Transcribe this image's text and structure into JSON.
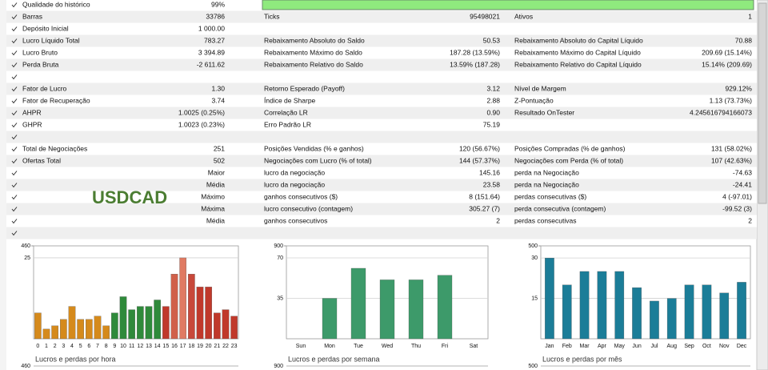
{
  "quality": {
    "label": "Qualidade do histórico",
    "value": "99%"
  },
  "table": {
    "rows": [
      [
        "Barras",
        "33786",
        "Ticks",
        "95498021",
        "Ativos",
        "1"
      ],
      [
        "Depósito Inicial",
        "1 000.00"
      ],
      [
        "Lucro Líquido Total",
        "783.27",
        "Rebaixamento Absoluto do Saldo",
        "50.53",
        "Rebaixamento Absoluto do Capital Líquido",
        "70.88"
      ],
      [
        "Lucro Bruto",
        "3 394.89",
        "Rebaixamento Máximo do Saldo",
        "187.28 (13.59%)",
        "Rebaixamento Máximo do Capital Líquido",
        "209.69 (15.14%)"
      ],
      [
        "Perda Bruta",
        "-2 611.62",
        "Rebaixamento Relativo do Saldo",
        "13.59% (187.28)",
        "Rebaixamento Relativo do Capital Líquido",
        "15.14% (209.69)"
      ],
      [],
      [
        "Fator de Lucro",
        "1.30",
        "Retorno Esperado (Payoff)",
        "3.12",
        "Nível de Margem",
        "929.12%"
      ],
      [
        "Fator de Recuperação",
        "3.74",
        "Índice de Sharpe",
        "2.88",
        "Z-Pontuação",
        "1.13 (73.73%)"
      ],
      [
        "AHPR",
        "1.0025 (0.25%)",
        "Correlação LR",
        "0.90",
        "Resultado OnTester",
        "4.245616794166073"
      ],
      [
        "GHPR",
        "1.0023 (0.23%)",
        "Erro Padrão LR",
        "75.19"
      ],
      [],
      [
        "Total de Negociações",
        "251",
        "Posições Vendidas (% e ganhos)",
        "120 (56.67%)",
        "Posições Compradas (% de ganhos)",
        "131 (58.02%)"
      ],
      [
        "Ofertas Total",
        "502",
        "Negociações com Lucro (% of total)",
        "144 (57.37%)",
        "Negociações com Perda (% of total)",
        "107 (42.63%)"
      ],
      [
        "Maior",
        "lucro da negociação",
        "145.16",
        "perda na Negociação",
        "-74.63"
      ],
      [
        "Média",
        "lucro da negociação",
        "23.58",
        "perda na Negociação",
        "-24.41"
      ],
      [
        "Máximo",
        "ganhos consecutivos ($)",
        "8 (151.64)",
        "perdas consecutivas ($)",
        "4 (-97.01)"
      ],
      [
        "Máxima",
        "lucro consecutivo (contagem)",
        "305.27 (7)",
        "perda consecutiva (contagem)",
        "-99.52 (3)"
      ],
      [
        "Média",
        "ganhos consecutivos",
        "2",
        "perdas consecutivas",
        "2"
      ],
      []
    ]
  },
  "symbol": "USDCAD",
  "chart_data": [
    {
      "type": "bar",
      "title": "Lucros e perdas por hora",
      "categories": [
        "0",
        "1",
        "2",
        "3",
        "4",
        "5",
        "6",
        "7",
        "8",
        "9",
        "10",
        "11",
        "12",
        "13",
        "14",
        "15",
        "16",
        "17",
        "18",
        "19",
        "20",
        "21",
        "22",
        "23"
      ],
      "values": [
        8,
        3,
        4,
        6,
        10,
        6,
        6,
        7,
        4,
        8,
        13,
        9,
        10,
        10,
        12,
        10,
        20,
        25,
        20,
        16,
        16,
        8,
        9,
        7
      ],
      "colors": [
        "#d58a1c",
        "#d58a1c",
        "#d58a1c",
        "#d58a1c",
        "#d58a1c",
        "#d58a1c",
        "#d58a1c",
        "#d58a1c",
        "#d58a1c",
        "#2f8a3b",
        "#2f8a3b",
        "#2f8a3b",
        "#2f8a3b",
        "#2f8a3b",
        "#2f8a3b",
        "#c0392b",
        "#d0604a",
        "#e07a62",
        "#c8483a",
        "#c0392b",
        "#c0392b",
        "#c0392b",
        "#c0392b",
        "#c0392b"
      ],
      "ylim": [
        0,
        28.7
      ],
      "yticks": [
        25
      ],
      "y2lim": [
        0,
        460
      ],
      "y2ticks": [
        460
      ]
    },
    {
      "type": "bar",
      "title": "Lucros e perdas por semana",
      "categories": [
        "Sun",
        "Mon",
        "Tue",
        "Wed",
        "Thu",
        "Fri",
        "Sat"
      ],
      "values": [
        0,
        35,
        61,
        51,
        51,
        55,
        0
      ],
      "color": "#3d9a6a",
      "ylim": [
        0,
        80.4
      ],
      "yticks": [
        35,
        70
      ],
      "y2lim": [
        0,
        900
      ],
      "y2ticks": [
        900
      ]
    },
    {
      "type": "bar",
      "title": "Lucros e perdas por mês",
      "categories": [
        "Jan",
        "Feb",
        "Mar",
        "Apr",
        "May",
        "Jun",
        "Jul",
        "Aug",
        "Sep",
        "Oct",
        "Nov",
        "Dec"
      ],
      "values": [
        30,
        20,
        25,
        25,
        25,
        19,
        14,
        15,
        20,
        20,
        17,
        21
      ],
      "color": "#1b7d98",
      "ylim": [
        0,
        34.5
      ],
      "yticks": [
        15,
        30
      ],
      "y2lim": [
        0,
        500
      ],
      "y2ticks": [
        500
      ]
    }
  ]
}
